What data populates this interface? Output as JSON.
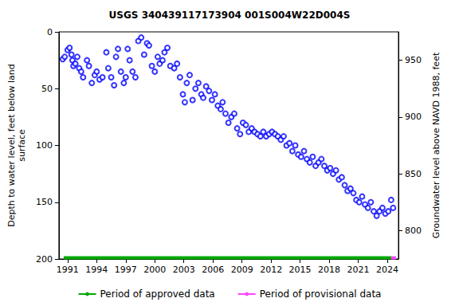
{
  "chart_data": {
    "type": "scatter",
    "title": "USGS 340439117173904 001S004W22D004S",
    "y_label": "Depth to water level, feet below land\nsurface",
    "y2_label": "Groundwater level above NAVD 1988, feet",
    "xlim": [
      1990.1,
      2025.15
    ],
    "xticks": [
      1991,
      1994,
      1997,
      2000,
      2003,
      2006,
      2009,
      2012,
      2015,
      2018,
      2021,
      2024
    ],
    "ylim": [
      200,
      0
    ],
    "yticks": [
      0,
      50,
      100,
      150,
      200
    ],
    "y2lim": [
      775,
      975
    ],
    "y2ticks": [
      800,
      850,
      900,
      950
    ],
    "grid": false,
    "legend": "bottom",
    "series": [
      {
        "type": "scatter",
        "color": "#0000ff",
        "marker": "open_circle",
        "x": [
          1990.5,
          1990.7,
          1991.0,
          1991.2,
          1991.4,
          1991.5,
          1991.6,
          1991.8,
          1992.0,
          1992.2,
          1992.4,
          1992.6,
          1993.0,
          1993.2,
          1993.5,
          1993.8,
          1994.0,
          1994.3,
          1994.6,
          1995.0,
          1995.2,
          1995.5,
          1995.8,
          1996.0,
          1996.2,
          1996.5,
          1996.8,
          1997.0,
          1997.2,
          1997.4,
          1997.7,
          1998.0,
          1998.3,
          1998.6,
          1998.9,
          1999.2,
          1999.4,
          1999.7,
          2000.0,
          2000.3,
          2000.5,
          2000.8,
          2001.0,
          2001.3,
          2001.6,
          2002.0,
          2002.3,
          2002.6,
          2002.9,
          2003.1,
          2003.3,
          2003.6,
          2003.9,
          2004.2,
          2004.5,
          2004.8,
          2005.0,
          2005.3,
          2005.6,
          2005.9,
          2006.2,
          2006.5,
          2006.8,
          2007.0,
          2007.3,
          2007.6,
          2007.9,
          2008.2,
          2008.5,
          2008.8,
          2009.1,
          2009.4,
          2009.7,
          2010.0,
          2010.3,
          2010.6,
          2010.9,
          2011.2,
          2011.5,
          2011.8,
          2012.1,
          2012.4,
          2012.7,
          2013.0,
          2013.3,
          2013.6,
          2013.9,
          2014.2,
          2014.5,
          2014.8,
          2015.1,
          2015.4,
          2015.7,
          2016.0,
          2016.3,
          2016.6,
          2016.9,
          2017.2,
          2017.5,
          2017.8,
          2018.1,
          2018.4,
          2018.7,
          2019.0,
          2019.3,
          2019.6,
          2019.9,
          2020.2,
          2020.5,
          2020.8,
          2021.1,
          2021.4,
          2021.7,
          2022.0,
          2022.3,
          2022.6,
          2022.9,
          2023.2,
          2023.5,
          2023.8,
          2024.1,
          2024.4,
          2024.6
        ],
        "values": [
          24,
          22,
          16,
          14,
          20,
          25,
          30,
          28,
          22,
          32,
          35,
          40,
          25,
          30,
          45,
          38,
          35,
          42,
          40,
          18,
          32,
          40,
          47,
          22,
          15,
          35,
          45,
          40,
          15,
          25,
          35,
          40,
          8,
          5,
          20,
          10,
          12,
          30,
          35,
          22,
          28,
          25,
          18,
          14,
          30,
          32,
          28,
          40,
          55,
          62,
          45,
          38,
          60,
          50,
          45,
          55,
          58,
          48,
          52,
          60,
          55,
          65,
          68,
          62,
          72,
          80,
          75,
          72,
          85,
          90,
          80,
          82,
          88,
          85,
          88,
          90,
          92,
          88,
          92,
          90,
          88,
          90,
          92,
          95,
          92,
          100,
          98,
          105,
          100,
          108,
          110,
          105,
          112,
          115,
          110,
          118,
          115,
          112,
          118,
          122,
          120,
          125,
          122,
          130,
          128,
          135,
          140,
          138,
          142,
          148,
          150,
          145,
          152,
          155,
          150,
          158,
          162,
          158,
          155,
          160,
          158,
          148,
          155
        ]
      },
      {
        "name": "Period of approved data",
        "type": "line",
        "color": "#00aa00",
        "x": [
          1990.6,
          2024.4
        ],
        "values": [
          199,
          199
        ]
      },
      {
        "name": "Period of provisional data",
        "type": "line",
        "color": "#ff44ff",
        "x": [
          2024.4,
          2024.9
        ],
        "values": [
          199,
          199
        ]
      }
    ]
  }
}
